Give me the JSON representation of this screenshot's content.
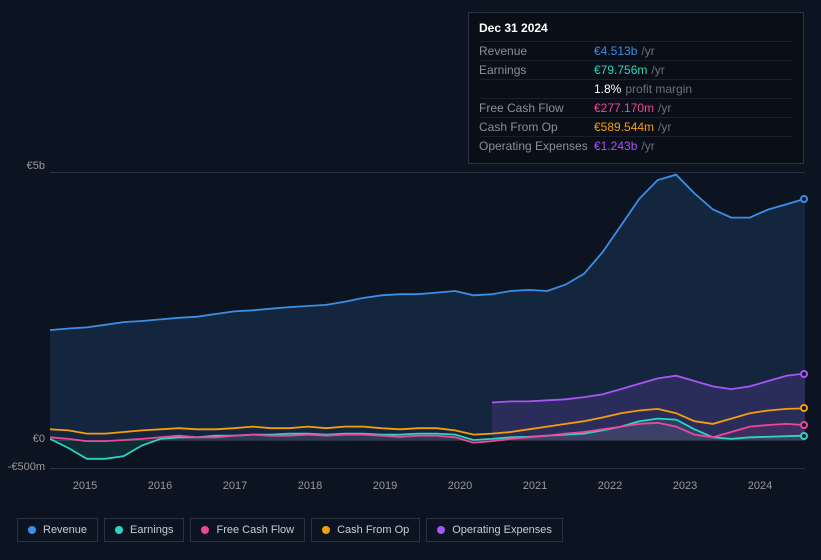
{
  "chart": {
    "type": "area-line",
    "background_color": "#0d1421",
    "grid_color": "#2a3140",
    "text_color": "#999999",
    "y_axis": {
      "labels": [
        "€5b",
        "€0",
        "-€500m"
      ],
      "positions": [
        163,
        438,
        466
      ]
    },
    "x_axis": {
      "labels": [
        "2015",
        "2016",
        "2017",
        "2018",
        "2019",
        "2020",
        "2021",
        "2022",
        "2023",
        "2024"
      ],
      "start_x": 80,
      "step_x": 75
    },
    "series": {
      "revenue": {
        "label": "Revenue",
        "color": "#3a8ee6",
        "fill_opacity": 0.15,
        "data": [
          2.05,
          2.08,
          2.1,
          2.15,
          2.2,
          2.22,
          2.25,
          2.28,
          2.3,
          2.35,
          2.4,
          2.42,
          2.45,
          2.48,
          2.5,
          2.52,
          2.58,
          2.65,
          2.7,
          2.72,
          2.72,
          2.75,
          2.78,
          2.7,
          2.72,
          2.78,
          2.8,
          2.78,
          2.9,
          3.1,
          3.5,
          4.0,
          4.5,
          4.85,
          4.95,
          4.6,
          4.3,
          4.15,
          4.15,
          4.3,
          4.4,
          4.5
        ]
      },
      "earnings": {
        "label": "Earnings",
        "color": "#2dd4bf",
        "fill_opacity": 0.12,
        "data": [
          0.02,
          -0.15,
          -0.35,
          -0.35,
          -0.3,
          -0.1,
          0.02,
          0.05,
          0.05,
          0.08,
          0.08,
          0.1,
          0.1,
          0.12,
          0.12,
          0.1,
          0.12,
          0.12,
          0.1,
          0.1,
          0.12,
          0.12,
          0.1,
          0.0,
          0.02,
          0.05,
          0.06,
          0.08,
          0.1,
          0.12,
          0.18,
          0.25,
          0.35,
          0.4,
          0.38,
          0.2,
          0.05,
          0.02,
          0.05,
          0.06,
          0.07,
          0.08
        ]
      },
      "free_cash_flow": {
        "label": "Free Cash Flow",
        "color": "#ec4899",
        "fill_opacity": 0.1,
        "data": [
          0.05,
          0.02,
          -0.02,
          -0.02,
          0.0,
          0.02,
          0.05,
          0.08,
          0.05,
          0.05,
          0.08,
          0.1,
          0.08,
          0.08,
          0.1,
          0.08,
          0.1,
          0.1,
          0.08,
          0.06,
          0.08,
          0.08,
          0.05,
          -0.05,
          -0.02,
          0.02,
          0.05,
          0.08,
          0.12,
          0.15,
          0.2,
          0.25,
          0.3,
          0.32,
          0.25,
          0.1,
          0.05,
          0.15,
          0.25,
          0.28,
          0.3,
          0.28
        ]
      },
      "cash_from_op": {
        "label": "Cash From Op",
        "color": "#f59e0b",
        "fill_opacity": 0.0,
        "data": [
          0.2,
          0.18,
          0.12,
          0.12,
          0.15,
          0.18,
          0.2,
          0.22,
          0.2,
          0.2,
          0.22,
          0.25,
          0.22,
          0.22,
          0.25,
          0.22,
          0.25,
          0.25,
          0.22,
          0.2,
          0.22,
          0.22,
          0.18,
          0.1,
          0.12,
          0.15,
          0.2,
          0.25,
          0.3,
          0.35,
          0.42,
          0.5,
          0.55,
          0.58,
          0.5,
          0.35,
          0.3,
          0.4,
          0.5,
          0.55,
          0.58,
          0.59
        ]
      },
      "operating_expenses": {
        "label": "Operating Expenses",
        "color": "#a855f7",
        "fill_opacity": 0.15,
        "data_start_index": 24,
        "data": [
          0.7,
          0.72,
          0.72,
          0.74,
          0.76,
          0.8,
          0.85,
          0.95,
          1.05,
          1.15,
          1.2,
          1.1,
          1.0,
          0.95,
          1.0,
          1.1,
          1.2,
          1.24
        ]
      }
    }
  },
  "tooltip": {
    "date": "Dec 31 2024",
    "rows": [
      {
        "label": "Revenue",
        "value": "€4.513b",
        "unit": "/yr",
        "color": "#3a8ee6"
      },
      {
        "label": "Earnings",
        "value": "€79.756m",
        "unit": "/yr",
        "color": "#2dd4bf"
      },
      {
        "label": "",
        "value": "1.8%",
        "unit": "profit margin",
        "color": "#ffffff"
      },
      {
        "label": "Free Cash Flow",
        "value": "€277.170m",
        "unit": "/yr",
        "color": "#ec4899"
      },
      {
        "label": "Cash From Op",
        "value": "€589.544m",
        "unit": "/yr",
        "color": "#f59e0b"
      },
      {
        "label": "Operating Expenses",
        "value": "€1.243b",
        "unit": "/yr",
        "color": "#a855f7"
      }
    ]
  },
  "legend": [
    {
      "label": "Revenue",
      "color": "#3a8ee6"
    },
    {
      "label": "Earnings",
      "color": "#2dd4bf"
    },
    {
      "label": "Free Cash Flow",
      "color": "#ec4899"
    },
    {
      "label": "Cash From Op",
      "color": "#f59e0b"
    },
    {
      "label": "Operating Expenses",
      "color": "#a855f7"
    }
  ]
}
